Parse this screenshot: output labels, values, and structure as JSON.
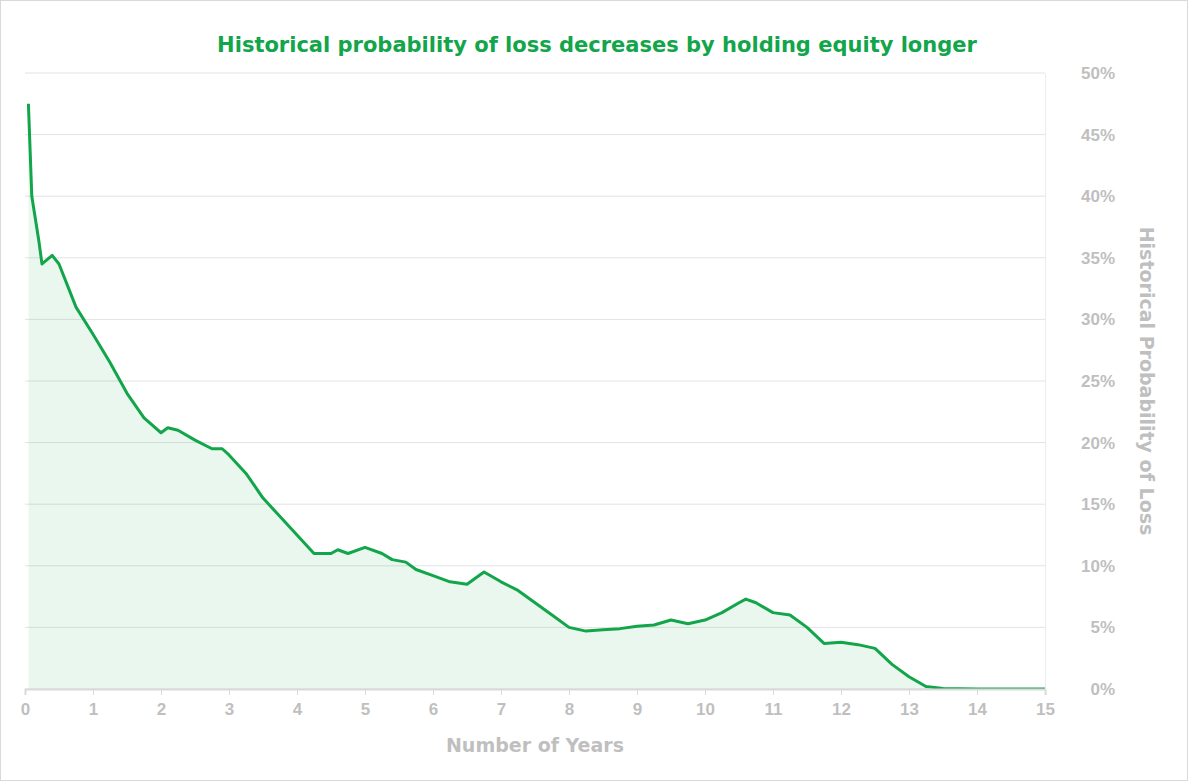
{
  "chart_data": {
    "type": "area",
    "title": "Historical probability of loss decreases by holding equity longer",
    "x_label": "Number of Years",
    "y_label": "Historical Probability of Loss",
    "color": "#12a54a",
    "grid": true,
    "x": [
      0.05,
      0.1,
      0.2,
      0.25,
      0.4,
      0.5,
      0.75,
      1.0,
      1.25,
      1.5,
      1.75,
      2.0,
      2.1,
      2.25,
      2.5,
      2.75,
      2.9,
      3.0,
      3.25,
      3.5,
      3.75,
      4.0,
      4.25,
      4.5,
      4.6,
      4.75,
      5.0,
      5.25,
      5.4,
      5.6,
      5.75,
      6.0,
      6.25,
      6.5,
      6.75,
      7.0,
      7.25,
      7.5,
      7.75,
      8.0,
      8.25,
      8.5,
      8.75,
      9.0,
      9.25,
      9.5,
      9.75,
      10.0,
      10.25,
      10.5,
      10.6,
      10.75,
      11.0,
      11.25,
      11.5,
      11.75,
      12.0,
      12.25,
      12.5,
      12.75,
      13.0,
      13.25,
      13.5,
      14.0,
      15.0
    ],
    "values": [
      47.5,
      40,
      36.5,
      34.5,
      35.2,
      34.5,
      31,
      28.8,
      26.5,
      24,
      22,
      20.8,
      21.2,
      21,
      20.2,
      19.5,
      19.5,
      19,
      17.5,
      15.5,
      14,
      12.5,
      11,
      11,
      11.3,
      11,
      11.5,
      11,
      10.5,
      10.3,
      9.7,
      9.2,
      8.7,
      8.5,
      9.5,
      8.7,
      8,
      7,
      6,
      5,
      4.7,
      4.8,
      4.9,
      5.1,
      5.2,
      5.6,
      5.3,
      5.6,
      6.2,
      7,
      7.3,
      7,
      6.2,
      6,
      5,
      3.7,
      3.8,
      3.6,
      3.3,
      2,
      1,
      0.2,
      0.05,
      0,
      0
    ],
    "xlim": [
      0,
      15
    ],
    "xticks": [
      0,
      1,
      2,
      3,
      4,
      5,
      6,
      7,
      8,
      9,
      10,
      11,
      12,
      13,
      14,
      15
    ],
    "ylim": [
      0,
      50
    ],
    "yticks": [
      {
        "value": 0,
        "label": "0%"
      },
      {
        "value": 5,
        "label": "5%"
      },
      {
        "value": 10,
        "label": "10%"
      },
      {
        "value": 15,
        "label": "15%"
      },
      {
        "value": 20,
        "label": "20%"
      },
      {
        "value": 25,
        "label": "25%"
      },
      {
        "value": 30,
        "label": "30%"
      },
      {
        "value": 35,
        "label": "35%"
      },
      {
        "value": 40,
        "label": "40%"
      },
      {
        "value": 45,
        "label": "45%"
      },
      {
        "value": 50,
        "label": "50%"
      }
    ]
  }
}
